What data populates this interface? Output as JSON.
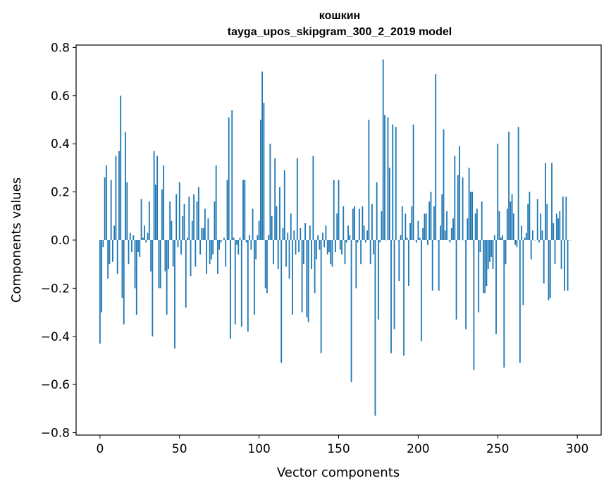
{
  "chart_data": {
    "type": "bar",
    "title": "кошкин",
    "subtitle": "tayga_upos_skipgram_300_2_2019 model",
    "xlabel": "Vector components",
    "ylabel": "Components values",
    "xlim": [
      -15,
      315
    ],
    "ylim": [
      -0.81,
      0.81
    ],
    "xticks": [
      0,
      50,
      100,
      150,
      200,
      250,
      300
    ],
    "yticks": [
      -0.8,
      -0.6,
      -0.4,
      -0.2,
      0.0,
      0.2,
      0.4,
      0.6,
      0.8
    ],
    "ytick_labels": [
      "−0.8",
      "−0.6",
      "−0.4",
      "−0.2",
      "0.0",
      "0.2",
      "0.4",
      "0.6",
      "0.8"
    ],
    "bar_color": "#1f77b4",
    "values": [
      -0.43,
      -0.3,
      -0.03,
      0.26,
      0.31,
      -0.16,
      -0.1,
      0.25,
      -0.09,
      0.06,
      0.35,
      -0.14,
      0.37,
      0.6,
      -0.24,
      -0.35,
      0.45,
      0.24,
      -0.1,
      0.03,
      -0.05,
      0.02,
      -0.2,
      -0.31,
      -0.05,
      -0.07,
      0.17,
      0.01,
      0.06,
      -0.01,
      0.03,
      0.16,
      -0.13,
      -0.4,
      0.37,
      0.23,
      0.35,
      -0.2,
      -0.2,
      0.21,
      0.31,
      -0.13,
      -0.31,
      -0.12,
      0.16,
      0.08,
      -0.11,
      -0.45,
      0.19,
      -0.03,
      0.24,
      -0.06,
      0.1,
      0.15,
      -0.28,
      0.01,
      0.18,
      -0.15,
      0.08,
      0.19,
      -0.11,
      0.16,
      0.22,
      -0.06,
      0.05,
      0.05,
      0.13,
      -0.14,
      0.09,
      -0.1,
      -0.08,
      -0.06,
      0.16,
      0.31,
      -0.14,
      -0.04,
      -0.01,
      0.0,
      0.01,
      -0.11,
      0.25,
      0.51,
      -0.41,
      0.54,
      0.01,
      -0.35,
      -0.02,
      -0.06,
      0.01,
      -0.36,
      0.25,
      0.25,
      -0.01,
      -0.38,
      0.02,
      -0.04,
      0.13,
      -0.31,
      -0.08,
      0.02,
      0.08,
      0.5,
      0.7,
      0.57,
      -0.2,
      -0.22,
      0.02,
      0.4,
      0.1,
      -0.1,
      0.34,
      0.14,
      -0.12,
      0.22,
      -0.51,
      0.05,
      0.29,
      -0.11,
      0.03,
      -0.16,
      0.11,
      -0.31,
      0.04,
      -0.06,
      0.34,
      -0.05,
      0.05,
      -0.3,
      -0.1,
      0.07,
      -0.32,
      -0.34,
      0.06,
      -0.12,
      0.35,
      -0.22,
      -0.08,
      0.02,
      -0.04,
      -0.47,
      0.03,
      -0.03,
      0.06,
      -0.06,
      -0.05,
      -0.1,
      -0.11,
      0.25,
      -0.05,
      0.11,
      0.25,
      -0.04,
      -0.06,
      0.14,
      -0.1,
      -0.01,
      0.06,
      0.02,
      -0.59,
      0.13,
      0.14,
      -0.2,
      -0.01,
      0.13,
      -0.1,
      0.14,
      0.06,
      -0.01,
      0.04,
      0.5,
      -0.1,
      0.15,
      -0.06,
      -0.73,
      0.24,
      -0.33,
      -0.01,
      0.12,
      0.75,
      0.52,
      0.0,
      0.51,
      0.3,
      -0.47,
      0.48,
      -0.37,
      0.47,
      0.0,
      -0.17,
      0.02,
      0.14,
      -0.48,
      0.11,
      0.01,
      -0.19,
      0.07,
      0.14,
      0.48,
      0.0,
      -0.01,
      0.08,
      0.01,
      -0.42,
      0.05,
      0.11,
      0.11,
      -0.02,
      0.16,
      0.2,
      -0.21,
      0.14,
      0.69,
      0.0,
      -0.21,
      0.06,
      0.19,
      0.46,
      0.04,
      0.12,
      0.0,
      -0.01,
      0.05,
      0.09,
      0.35,
      -0.33,
      0.27,
      0.39,
      0.0,
      0.26,
      0.0,
      -0.37,
      0.09,
      0.3,
      0.2,
      0.2,
      -0.54,
      0.11,
      0.13,
      -0.3,
      -0.05,
      0.16,
      -0.22,
      -0.22,
      -0.19,
      -0.12,
      -0.09,
      -0.07,
      -0.12,
      0.02,
      -0.39,
      0.4,
      0.12,
      0.01,
      0.02,
      -0.53,
      -0.1,
      0.13,
      0.45,
      0.16,
      0.19,
      0.11,
      -0.02,
      -0.03,
      0.47,
      -0.51,
      0.06,
      -0.27,
      0.01,
      0.03,
      0.15,
      0.2,
      -0.08,
      0.04,
      0.0,
      0.0,
      0.17,
      -0.01,
      0.11,
      0.04,
      -0.18,
      0.32,
      0.15,
      -0.25,
      -0.24,
      0.32,
      0.07,
      -0.1,
      0.11,
      0.09,
      0.12,
      -0.12,
      0.18,
      -0.21,
      0.18,
      -0.21,
      0.0,
      0.0
    ]
  }
}
